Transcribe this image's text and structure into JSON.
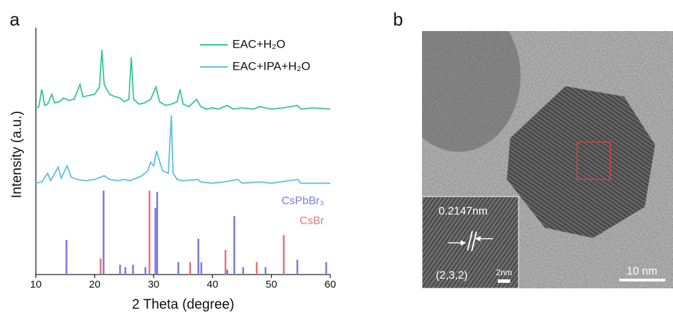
{
  "panel_labels": [
    "a",
    "b"
  ],
  "chart_data": {
    "type": "line",
    "xlabel": "2 Theta (degree)",
    "ylabel": "Intensity (a.u.)",
    "xlim": [
      10,
      60
    ],
    "xticks": [
      10,
      20,
      30,
      40,
      50,
      60
    ],
    "ylim": [
      0,
      100
    ],
    "series": [
      {
        "name": "EAC+H₂O",
        "color": "#2ec98f",
        "style": "line",
        "x": [
          10,
          10.5,
          11,
          11.5,
          12,
          12.7,
          13.2,
          14,
          14.7,
          15.5,
          16.5,
          17.5,
          18,
          19,
          20,
          20.8,
          21.2,
          21.6,
          22.5,
          23.5,
          24.3,
          25,
          25.8,
          26.2,
          26.6,
          27.5,
          28.5,
          29.5,
          30.4,
          31,
          32,
          33,
          34,
          34.5,
          35,
          36,
          37.3,
          38,
          39,
          40,
          41,
          42.5,
          43.5,
          45,
          47,
          48,
          50,
          52,
          54.4,
          55,
          57,
          60
        ],
        "values": [
          67.5,
          68,
          75,
          68.5,
          69,
          73,
          69.5,
          70,
          71.5,
          70.5,
          71,
          77,
          72,
          72.5,
          73,
          76,
          91,
          77,
          73,
          72,
          71.5,
          70,
          71,
          88,
          71,
          69,
          69.5,
          71,
          76,
          70,
          68.5,
          69,
          70,
          75,
          69,
          68,
          71,
          68,
          67,
          67.5,
          67,
          68.5,
          67,
          67.5,
          67,
          68,
          67,
          67.5,
          68.5,
          67,
          67.5,
          67
        ]
      },
      {
        "name": "EAC+IPA+H₂O",
        "color": "#5bbde3",
        "style": "line",
        "x": [
          10,
          11,
          12,
          12.5,
          13.8,
          14.3,
          15.3,
          16,
          17,
          18.5,
          20,
          21.6,
          22.5,
          24,
          25,
          26,
          27,
          28,
          29,
          29.5,
          30,
          30.5,
          31,
          31.5,
          32.5,
          33,
          33.3,
          34,
          35,
          37.5,
          38,
          40,
          42,
          44.3,
          45,
          48,
          50,
          54.5,
          55,
          60
        ],
        "values": [
          37,
          37.5,
          41,
          38,
          43.5,
          39,
          44,
          39.5,
          38.5,
          38,
          38.5,
          40,
          38.5,
          38,
          38.5,
          38,
          39,
          40,
          42,
          45.5,
          44,
          50,
          46,
          42,
          41,
          64.5,
          41,
          38.5,
          38,
          38.5,
          37.5,
          37,
          37.5,
          38.5,
          37,
          37.5,
          37,
          38.5,
          37,
          37
        ]
      },
      {
        "name": "CsPbBr₃",
        "color": "#7b7be6",
        "style": "stick",
        "x": [
          15.2,
          21.5,
          24.3,
          25.2,
          26.5,
          28.6,
          30.3,
          30.6,
          34.2,
          37.6,
          38.1,
          42.5,
          43.7,
          45.2,
          49,
          54.4,
          59.3
        ],
        "values": [
          14,
          34,
          4,
          3,
          4,
          3,
          27,
          33.5,
          5,
          14.5,
          5,
          2,
          23.7,
          3,
          3,
          6,
          5
        ]
      },
      {
        "name": "CsBr",
        "color": "#e87474",
        "style": "stick",
        "x": [
          21.0,
          29.3,
          36.2,
          42.2,
          47.5,
          52.1
        ],
        "values": [
          6.5,
          34,
          5,
          10,
          5,
          16
        ]
      }
    ]
  },
  "tem_image": {
    "lattice_spacing": "0.2147nm",
    "plane": "(2,3,2)",
    "inset_scale": "2nm",
    "scale": "10 nm"
  }
}
